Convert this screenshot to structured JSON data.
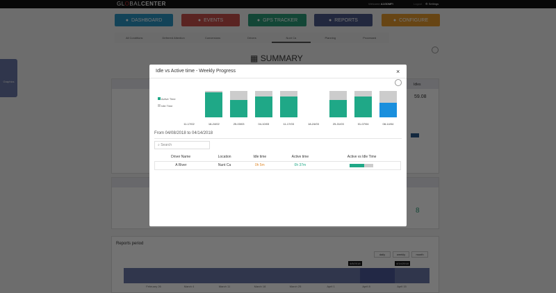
{
  "topbar": {
    "brand_pre": "GL",
    "brand_o": "O",
    "brand_mid": "BAL",
    "brand_post": "CENTER",
    "welcome": "Welcome",
    "user": "A1GDMFI",
    "logout": "Logout",
    "settings": "Settings"
  },
  "nav": [
    {
      "label": "DASHBOARD",
      "color": "#2b95c4",
      "icon": "dashboard-icon"
    },
    {
      "label": "EVENTS",
      "color": "#c9504c",
      "icon": "warning-icon"
    },
    {
      "label": "GPS TRACKER",
      "color": "#2a9c78",
      "icon": "location-icon"
    },
    {
      "label": "REPORTS",
      "color": "#4b5a8a",
      "icon": "pie-chart-icon"
    },
    {
      "label": "CONFIGURE",
      "color": "#e59a2d",
      "icon": "wrench-icon"
    }
  ],
  "subtabs": [
    "All Conditions",
    "Deferred Attention",
    "Conversions",
    "Drivers",
    "Nunt Ca",
    "Planning",
    "Processed"
  ],
  "active_subtab": 4,
  "summary": {
    "title": "SUMMARY",
    "side_tab": "Graphics",
    "value1": "59.08",
    "value2": "8",
    "idle_label": "Idles"
  },
  "reports_period": {
    "title": "Reports period",
    "buttons": [
      "daily",
      "weekly",
      "month"
    ],
    "markers": [
      "4/8/2018",
      "4/14/2018"
    ],
    "timeline": [
      "February 26",
      "March 4",
      "March 11",
      "March 18",
      "March 25",
      "April 1",
      "April 8",
      "April 15"
    ]
  },
  "modal": {
    "title": "Idle vs Active time - Weekly Progress",
    "close": "×",
    "range": "From 04/08/2018 to 04/14/2018",
    "search_placeholder": "Search",
    "columns": [
      "Driver Name",
      "Location",
      "Idle time",
      "Active time",
      "Active vs Idle Time"
    ],
    "rows": [
      {
        "driver": "A River",
        "location": "Nunt Ca",
        "idle": "0h 5m",
        "active": "0h 37m",
        "active_fraction": 0.6
      }
    ]
  },
  "chart_data": {
    "type": "bar",
    "stacked": true,
    "categories": [
      "11-17/02",
      "18-24/02",
      "25-03/03",
      "04-10/03",
      "11-17/03",
      "18-24/03",
      "25-31/03",
      "01-07/04",
      "08-14/04"
    ],
    "series": [
      {
        "name": "Active Time",
        "color": "#1fa887",
        "values": [
          0,
          95,
          65,
          80,
          78,
          0,
          65,
          78,
          55
        ]
      },
      {
        "name": "Idle Time",
        "color": "#cccccc",
        "values": [
          0,
          5,
          35,
          20,
          22,
          0,
          35,
          22,
          45
        ]
      }
    ],
    "highlight_color": "#1a8fdd",
    "highlight_index": 8,
    "ylim": [
      0,
      100
    ],
    "legend": "left"
  }
}
